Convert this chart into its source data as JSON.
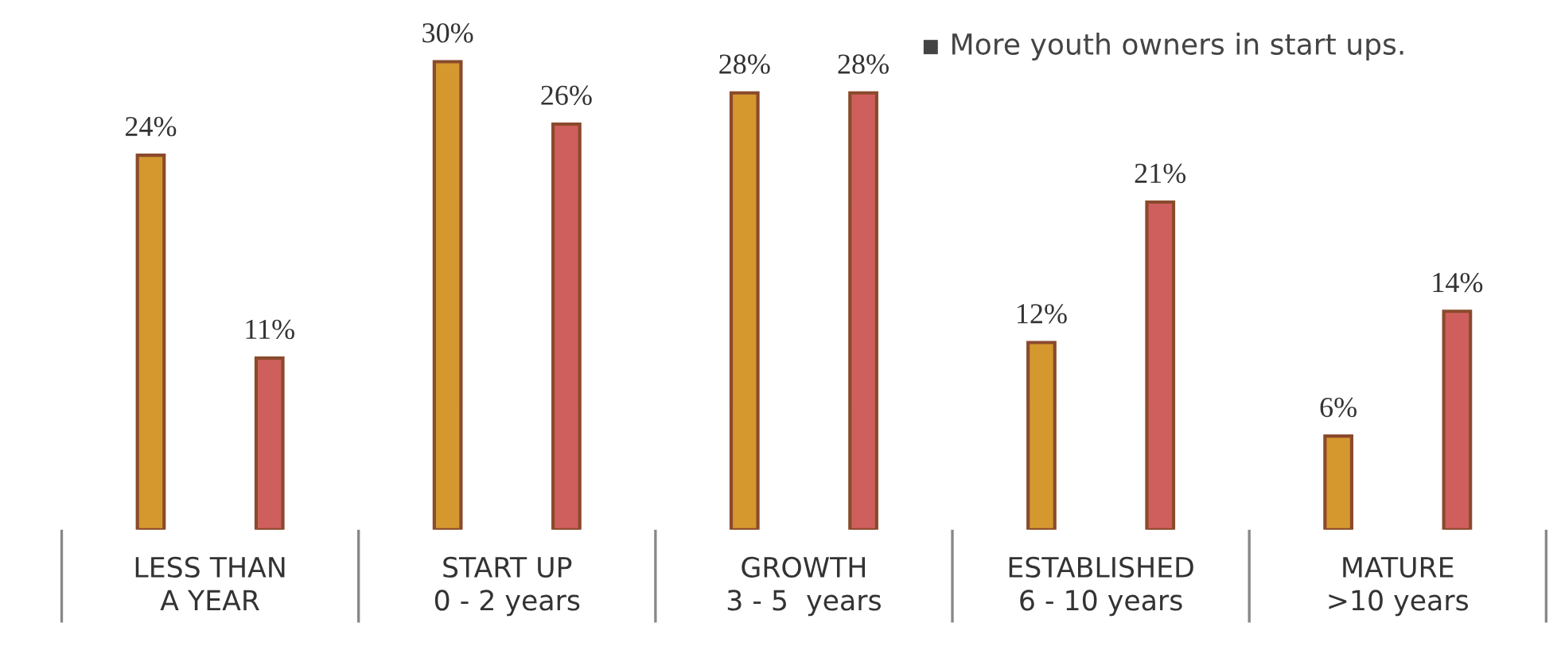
{
  "chart_data": {
    "type": "bar",
    "categories": [
      "LESS THAN\nA YEAR",
      "START UP\n0 - 2 years",
      "GROWTH\n3 - 5  years",
      "ESTABLISHED\n6 - 10 years",
      "MATURE\n>10 years"
    ],
    "series": [
      {
        "color": "#d4982f",
        "values": [
          24,
          30,
          28,
          12,
          6
        ],
        "value_labels": [
          "24%",
          "30%",
          "28%",
          "12%",
          "6%"
        ]
      },
      {
        "color": "#cf5f5d",
        "values": [
          11,
          26,
          28,
          21,
          14
        ],
        "value_labels": [
          "11%",
          "26%",
          "28%",
          "21%",
          "14%"
        ]
      }
    ],
    "grid": false,
    "legend": false,
    "annotations": [
      "▪ More youth owners in start ups."
    ]
  }
}
